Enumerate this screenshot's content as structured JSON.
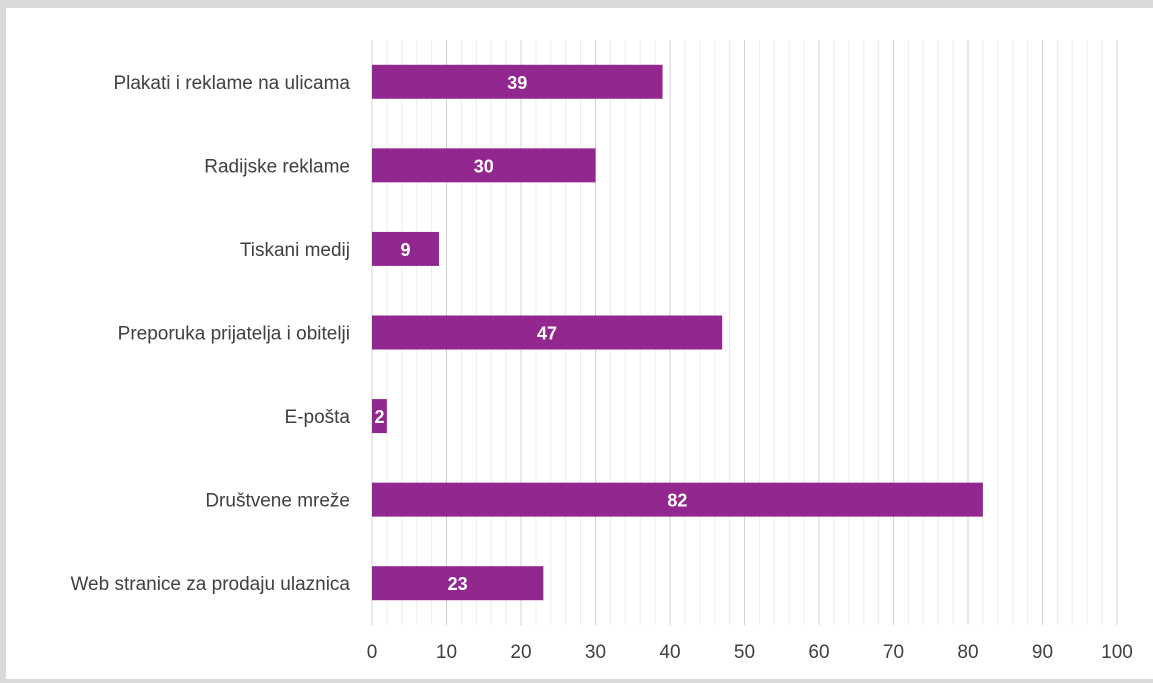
{
  "chart_data": {
    "type": "bar",
    "orientation": "horizontal",
    "categories": [
      "Plakati i reklame na ulicama",
      "Radijske reklame",
      "Tiskani medij",
      "Preporuka prijatelja i obitelji",
      "E-pošta",
      "Društvene mreže",
      "Web stranice za prodaju ulaznica"
    ],
    "values": [
      39,
      30,
      9,
      47,
      2,
      82,
      23
    ],
    "xlim": [
      0,
      100
    ],
    "xticks": [
      "0",
      "10",
      "20",
      "30",
      "40",
      "50",
      "60",
      "70",
      "80",
      "90",
      "100"
    ],
    "grid": true,
    "bar_color": "#92278f",
    "data_labels": true
  }
}
